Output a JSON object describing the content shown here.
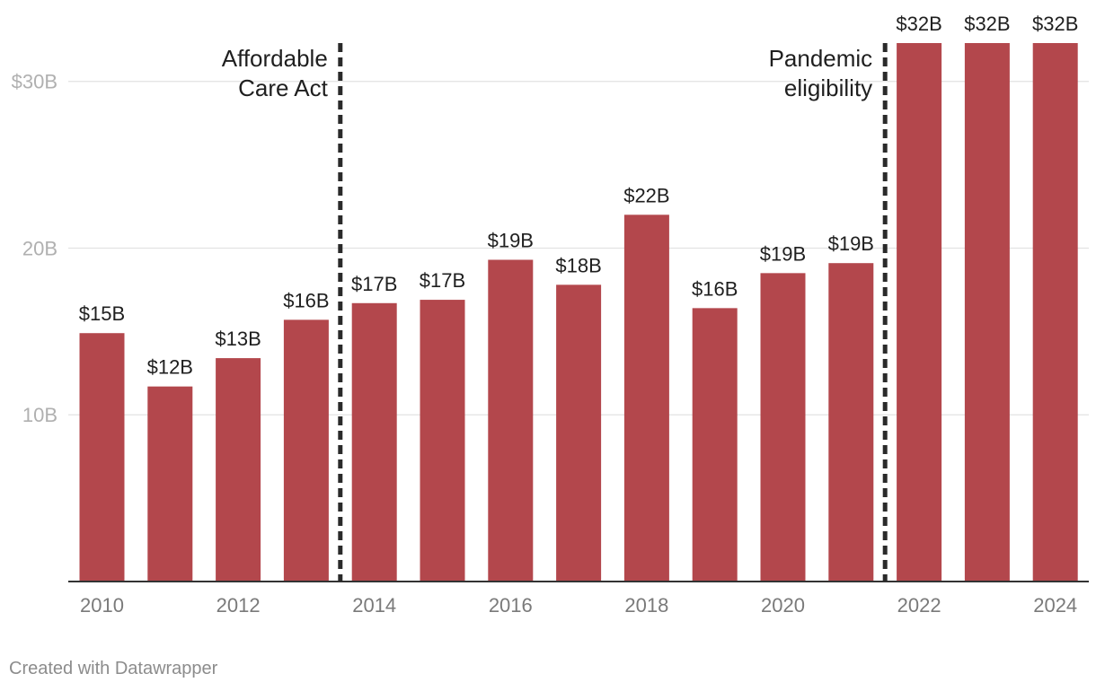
{
  "chart_data": {
    "type": "bar",
    "title": "",
    "xlabel": "",
    "ylabel": "",
    "categories": [
      "2010",
      "2011",
      "2012",
      "2013",
      "2014",
      "2015",
      "2016",
      "2017",
      "2018",
      "2019",
      "2020",
      "2021",
      "2022",
      "2023",
      "2024"
    ],
    "values": [
      14.9,
      11.7,
      13.4,
      15.7,
      16.7,
      16.9,
      19.3,
      17.8,
      22.0,
      16.4,
      18.5,
      19.1,
      32.3,
      32.3,
      32.3
    ],
    "value_labels": [
      "$15B",
      "$12B",
      "$13B",
      "$16B",
      "$17B",
      "$17B",
      "$19B",
      "$18B",
      "$22B",
      "$16B",
      "$19B",
      "$19B",
      "$32B",
      "$32B",
      "$32B"
    ],
    "ylim": [
      0,
      32.3
    ],
    "y_ticks": [
      {
        "value": 10,
        "label": "10B"
      },
      {
        "value": 20,
        "label": "20B"
      },
      {
        "value": 30,
        "label": "$30B"
      }
    ],
    "x_tick_labels": [
      "2010",
      "2012",
      "2014",
      "2016",
      "2018",
      "2020",
      "2022",
      "2024"
    ],
    "grid": true,
    "bar_color": "#b3474c",
    "annotations": [
      {
        "between": [
          "2013",
          "2014"
        ],
        "lines": [
          "Affordable",
          "Care Act"
        ],
        "align": "left"
      },
      {
        "between": [
          "2021",
          "2022"
        ],
        "lines": [
          "Pandemic",
          "eligibility"
        ],
        "align": "left"
      }
    ]
  },
  "credit": "Created with Datawrapper"
}
